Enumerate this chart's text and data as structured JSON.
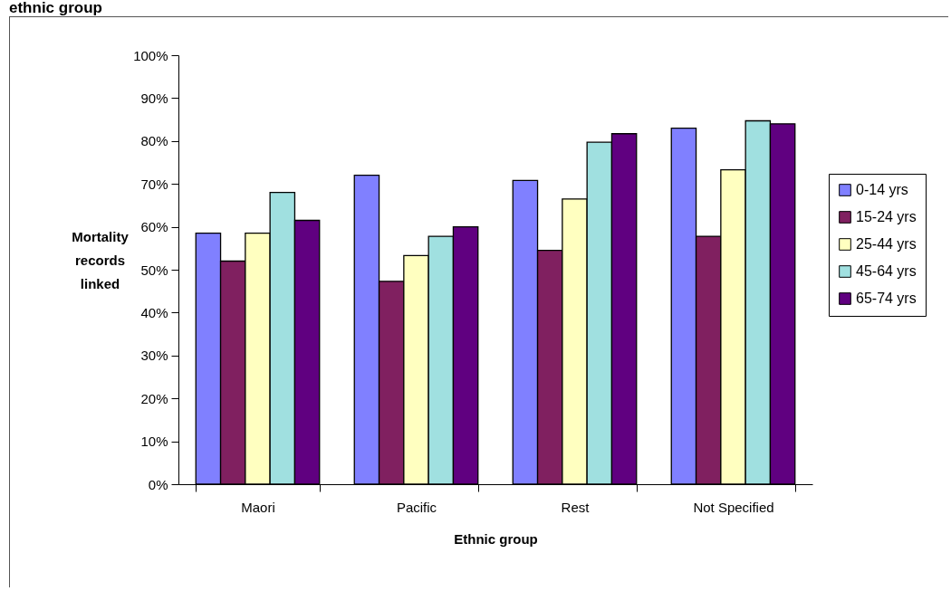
{
  "chart_data": {
    "type": "bar",
    "title": "ethnic group",
    "xlabel": "Ethnic group",
    "ylabel": "Mortality records linked",
    "categories": [
      "Maori",
      "Pacific",
      "Rest",
      "Not Specified"
    ],
    "series": [
      {
        "name": "0-14 yrs",
        "color": "#8080ff",
        "values": [
          58.5,
          72,
          70.8,
          83
        ]
      },
      {
        "name": "15-24 yrs",
        "color": "#802060",
        "values": [
          52,
          47.3,
          54.5,
          57.8
        ]
      },
      {
        "name": "25-44 yrs",
        "color": "#ffffc0",
        "values": [
          58.5,
          53.3,
          66.5,
          73.3
        ]
      },
      {
        "name": "45-64 yrs",
        "color": "#a0e0e0",
        "values": [
          68,
          57.8,
          79.7,
          84.7
        ]
      },
      {
        "name": "65-74 yrs",
        "color": "#600080",
        "values": [
          61.5,
          60,
          81.7,
          84
        ]
      }
    ],
    "ylim": [
      0,
      100
    ],
    "yticks": [
      {
        "value": 0,
        "label": "0%"
      },
      {
        "value": 10,
        "label": "10%"
      },
      {
        "value": 20,
        "label": "20%"
      },
      {
        "value": 30,
        "label": "30%"
      },
      {
        "value": 40,
        "label": "40%"
      },
      {
        "value": 50,
        "label": "50%"
      },
      {
        "value": 60,
        "label": "60%"
      },
      {
        "value": 70,
        "label": "70%"
      },
      {
        "value": 80,
        "label": "80%"
      },
      {
        "value": 90,
        "label": "90%"
      },
      {
        "value": 100,
        "label": "100%"
      }
    ],
    "grid": false,
    "legend": "right"
  }
}
